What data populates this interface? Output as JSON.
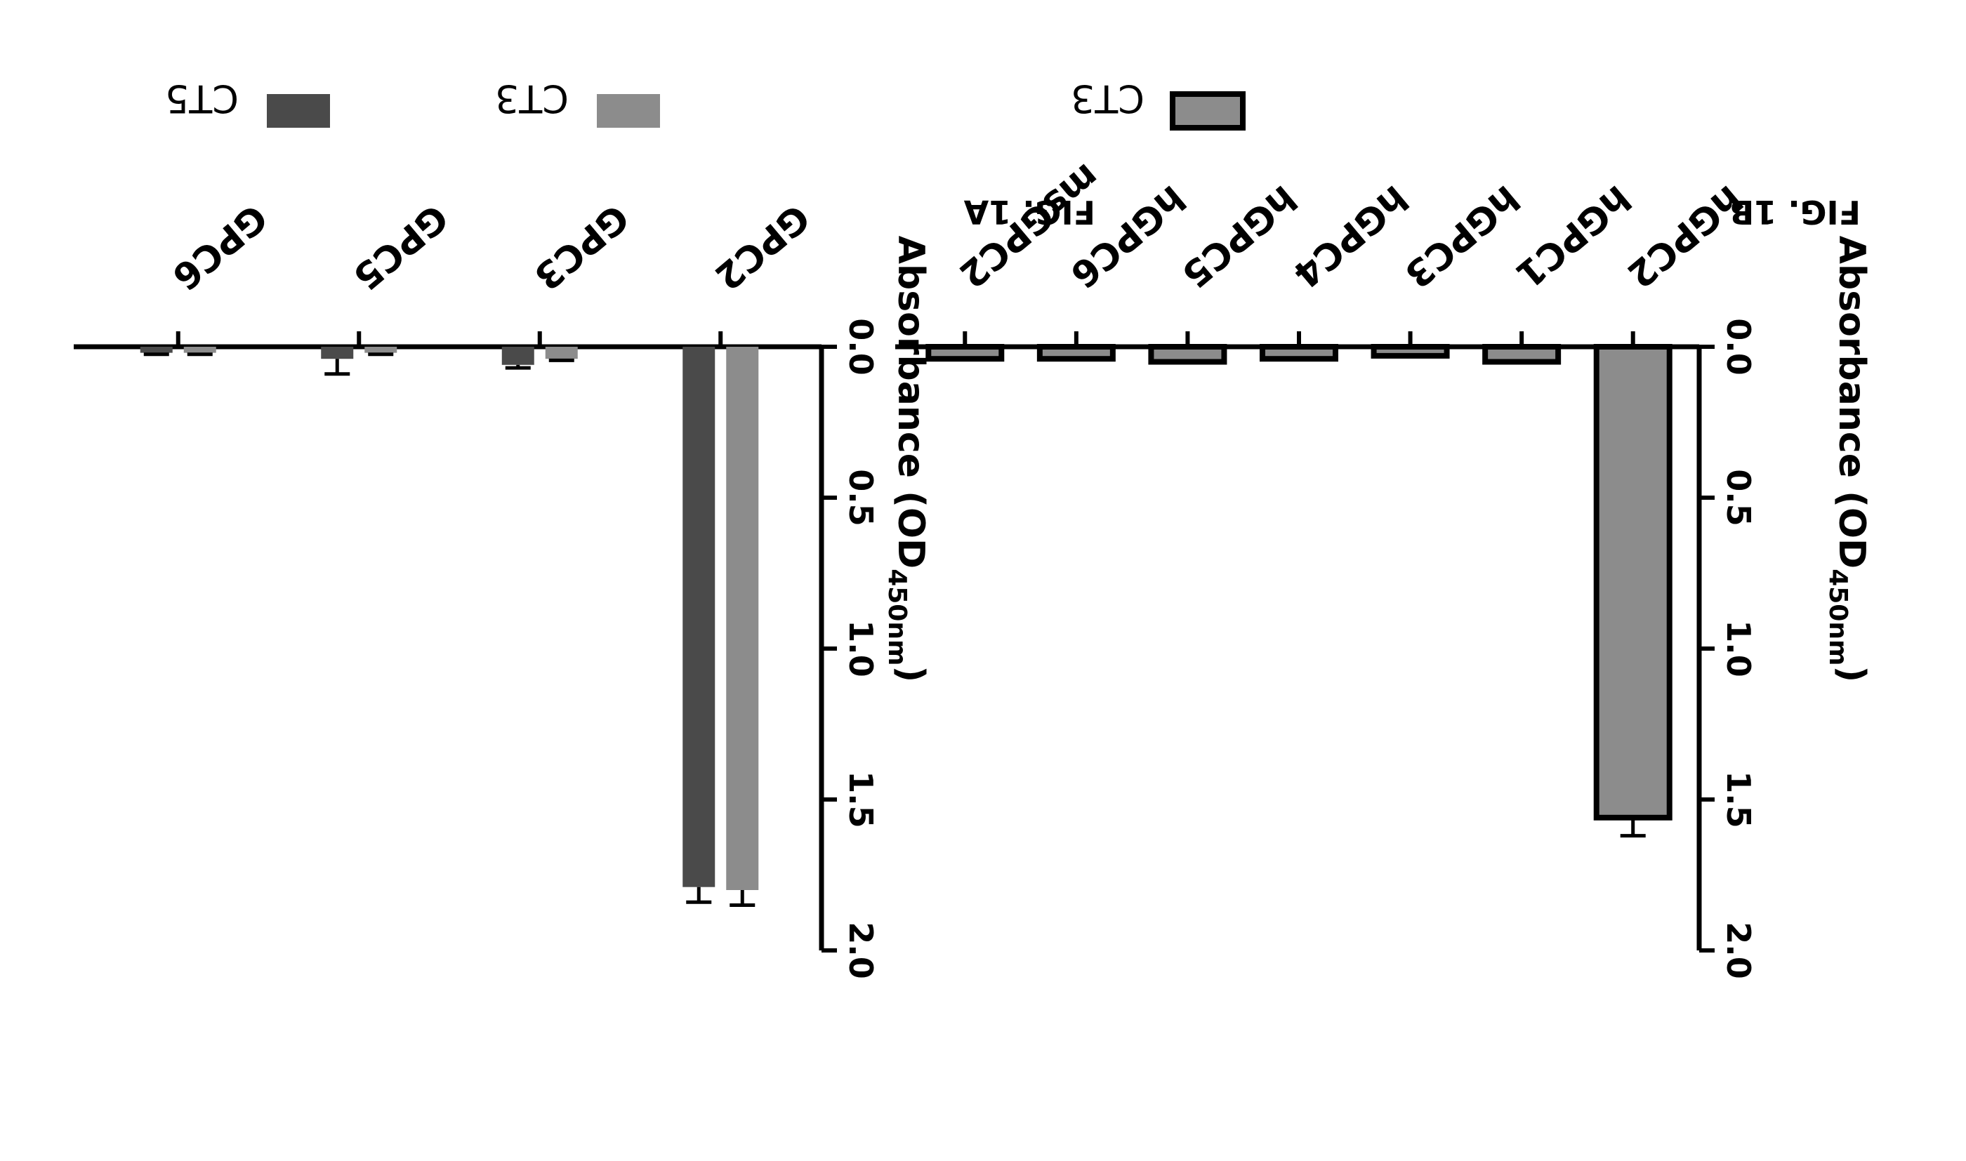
{
  "colors": {
    "CT3": "#8c8c8c",
    "CT5": "#4a4a4a",
    "axis": "#000000"
  },
  "chart_data": [
    {
      "type": "bar",
      "figure_label": "FIG. 1A",
      "title": "",
      "categories": [
        "GPC2",
        "GPC3",
        "GPC5",
        "GPC6"
      ],
      "series": [
        {
          "name": "CT3",
          "values": [
            1.8,
            0.04,
            0.02,
            0.02
          ],
          "errors": [
            0.05,
            0.005,
            0.005,
            0.005
          ]
        },
        {
          "name": "CT5",
          "values": [
            1.79,
            0.06,
            0.04,
            0.02
          ],
          "errors": [
            0.05,
            0.01,
            0.05,
            0.005
          ]
        }
      ],
      "ylabel_main": "Absorbance (OD",
      "ylabel_sub": "450nm",
      "ylabel_close": ")",
      "ylim": [
        0,
        2.0
      ],
      "yticks": [
        "0.0",
        "0.5",
        "1.0",
        "1.5",
        "2.0"
      ],
      "legend": "top",
      "grid": false,
      "orientation": "rotated 180°"
    },
    {
      "type": "bar",
      "figure_label": "FIG. 1B",
      "title": "",
      "categories": [
        "hGPC2",
        "hGPC1",
        "hGPC3",
        "hGPC4",
        "hGPC5",
        "hGPC6",
        "msGPC2"
      ],
      "series": [
        {
          "name": "CT3",
          "values": [
            1.56,
            0.05,
            0.03,
            0.04,
            0.05,
            0.04,
            0.04
          ],
          "errors": [
            0.06,
            0,
            0,
            0,
            0,
            0,
            0
          ]
        }
      ],
      "ylabel_main": "Absorbance (OD",
      "ylabel_sub": "450nm",
      "ylabel_close": ")",
      "ylim": [
        0,
        2.0
      ],
      "yticks": [
        "0.0",
        "0.5",
        "1.0",
        "1.5",
        "2.0"
      ],
      "legend": "top",
      "grid": false,
      "orientation": "rotated 180°"
    }
  ]
}
